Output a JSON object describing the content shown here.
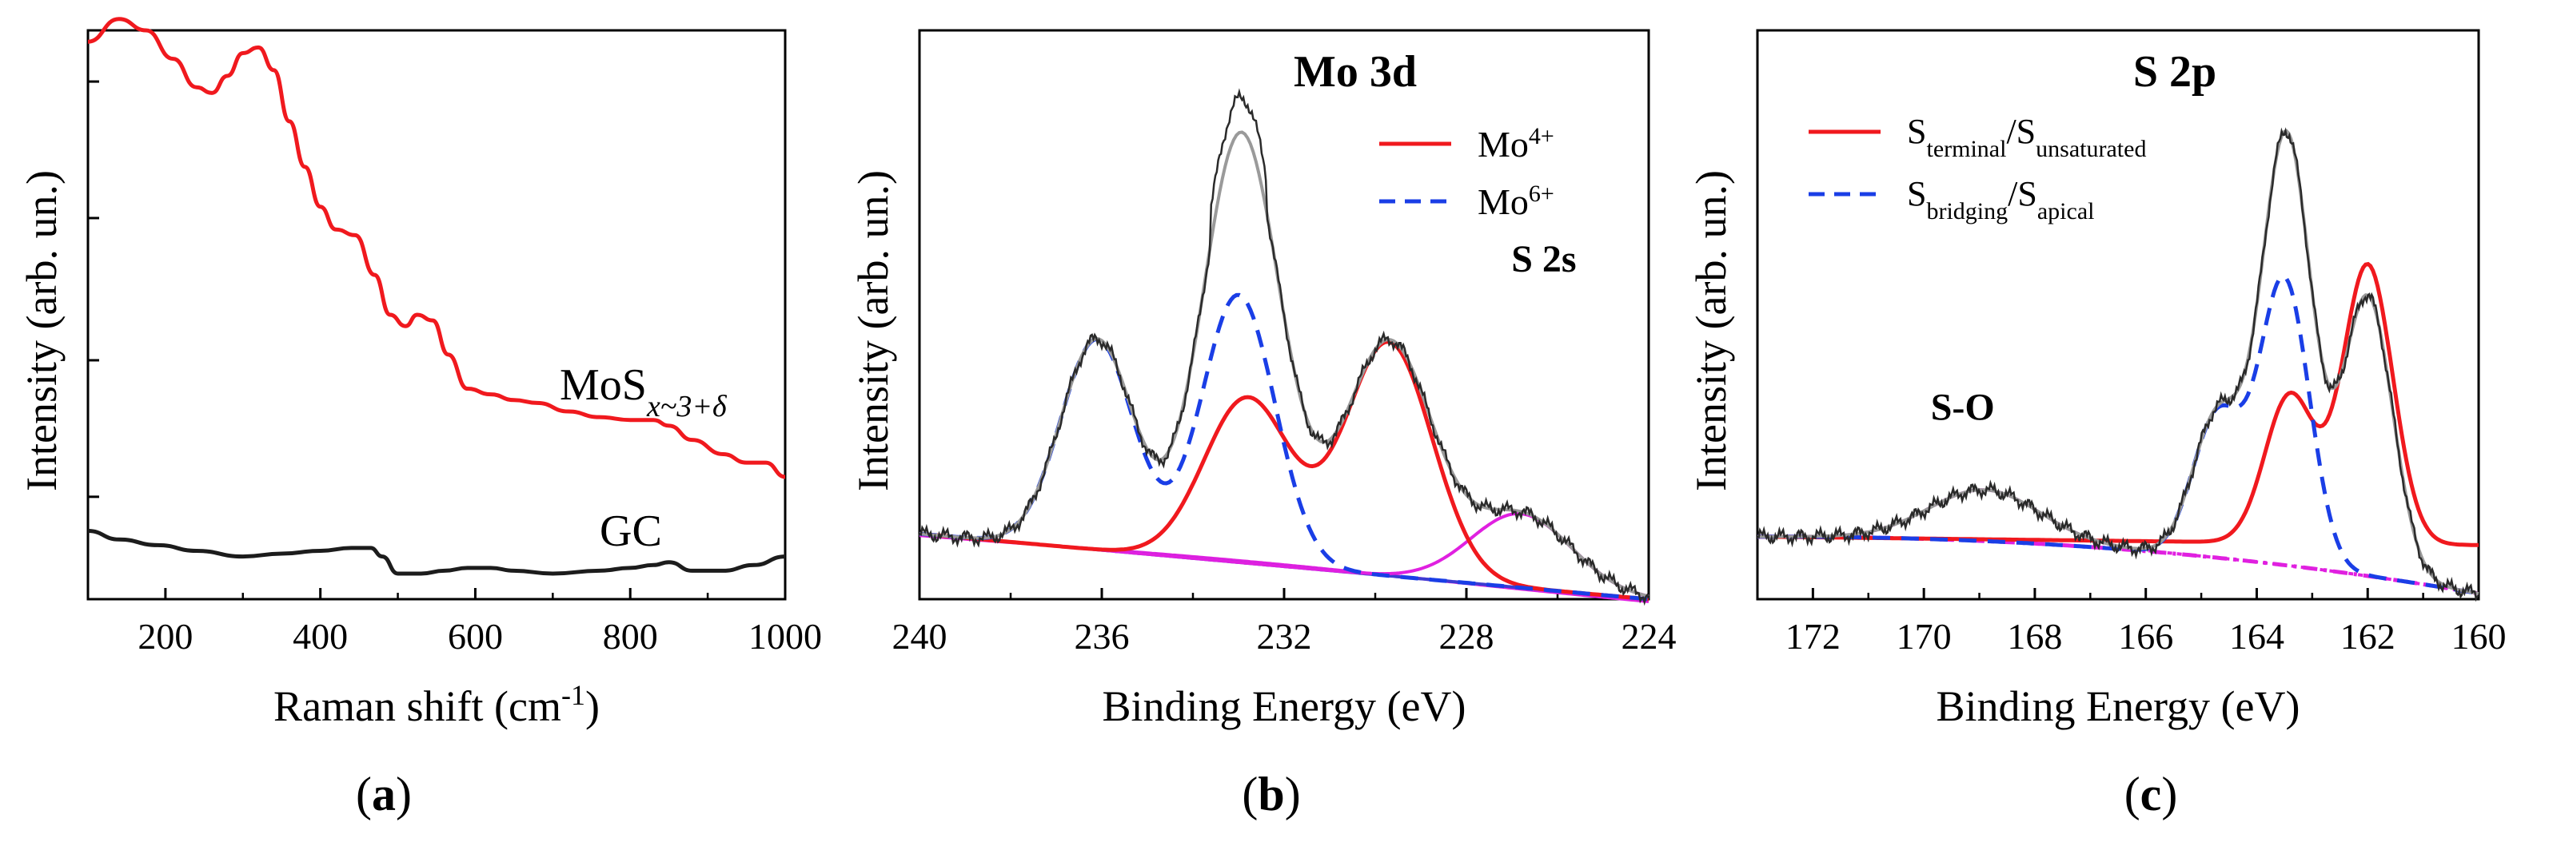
{
  "chart_data": [
    {
      "type": "line",
      "panel": "a",
      "panel_label": "a",
      "xlabel": "Raman shift (cm",
      "xlabel_sup": "-1",
      "xlabel_end": ")",
      "ylabel": "Intensity (arb. un.)",
      "xlim": [
        100,
        1000
      ],
      "ylim": [
        0,
        100
      ],
      "xticks": [
        200,
        400,
        600,
        800,
        1000
      ],
      "yticks": [
        18,
        42,
        67,
        91
      ],
      "series": [
        {
          "name": "MoSx~3+δ",
          "label_main": "MoS",
          "label_sub": "x~3+δ",
          "color": "#f0191e",
          "points": [
            [
              100,
              98
            ],
            [
              140,
              102
            ],
            [
              175,
              100
            ],
            [
              210,
              95
            ],
            [
              240,
              90
            ],
            [
              260,
              89
            ],
            [
              280,
              92
            ],
            [
              300,
              96
            ],
            [
              320,
              97
            ],
            [
              340,
              93
            ],
            [
              360,
              84
            ],
            [
              380,
              76
            ],
            [
              400,
              69
            ],
            [
              420,
              65
            ],
            [
              445,
              64
            ],
            [
              470,
              57
            ],
            [
              490,
              50
            ],
            [
              510,
              48
            ],
            [
              525,
              50
            ],
            [
              545,
              49
            ],
            [
              565,
              43
            ],
            [
              590,
              37
            ],
            [
              620,
              36
            ],
            [
              650,
              35
            ],
            [
              680,
              34.5
            ],
            [
              720,
              33
            ],
            [
              760,
              32
            ],
            [
              800,
              31.5
            ],
            [
              830,
              31.5
            ],
            [
              850,
              30.5
            ],
            [
              880,
              28
            ],
            [
              920,
              25.5
            ],
            [
              950,
              24
            ],
            [
              975,
              24
            ],
            [
              1000,
              21.5
            ]
          ]
        },
        {
          "name": "GC",
          "label_main": "GC",
          "color": "#1c1c1c",
          "points": [
            [
              100,
              12
            ],
            [
              140,
              10.5
            ],
            [
              190,
              9.5
            ],
            [
              240,
              8.5
            ],
            [
              300,
              7.5
            ],
            [
              350,
              8
            ],
            [
              400,
              8.5
            ],
            [
              440,
              9
            ],
            [
              465,
              9
            ],
            [
              480,
              7.5
            ],
            [
              500,
              4.5
            ],
            [
              530,
              4.5
            ],
            [
              560,
              5
            ],
            [
              590,
              5.5
            ],
            [
              620,
              5.5
            ],
            [
              650,
              5
            ],
            [
              700,
              4.5
            ],
            [
              760,
              5
            ],
            [
              800,
              5.5
            ],
            [
              830,
              6
            ],
            [
              850,
              6.5
            ],
            [
              880,
              5
            ],
            [
              920,
              5
            ],
            [
              960,
              6
            ],
            [
              1000,
              7.5
            ]
          ]
        }
      ]
    },
    {
      "type": "line",
      "panel": "b",
      "panel_label": "b",
      "title": "Mo 3d",
      "xlabel": "Binding Energy (eV)",
      "ylabel": "Intensity (arb. un.)",
      "xlim": [
        240,
        224
      ],
      "ylim": [
        0,
        100
      ],
      "xticks": [
        240,
        236,
        232,
        228,
        224
      ],
      "legend": [
        {
          "label_main": "Mo",
          "label_sup": "4+",
          "color": "#f0191e",
          "dash": "solid"
        },
        {
          "label_main": "Mo",
          "label_sup": "6+",
          "color": "#1a3ee6",
          "dash": "dashed"
        }
      ],
      "annotations": [
        {
          "text": "S 2s",
          "x": 226.3,
          "y": 33
        }
      ],
      "peaks": {
        "baseline": {
          "color": "#3c3cd2",
          "start": 11.5,
          "end": 0
        },
        "background": {
          "color": "#e020e0"
        },
        "mo6_1": {
          "center": 236.1,
          "height": 37,
          "width": 0.8,
          "color": "#1a3ee6"
        },
        "mo6_2": {
          "center": 233.0,
          "height": 47,
          "width": 0.8,
          "color": "#1a3ee6"
        },
        "mo4_1": {
          "center": 232.8,
          "height": 29,
          "width": 0.95,
          "color": "#f0191e"
        },
        "mo4_2": {
          "center": 229.7,
          "height": 41,
          "width": 0.95,
          "color": "#f0191e"
        },
        "s2s": {
          "center": 226.8,
          "height": 13,
          "width": 1.1,
          "color": "#e020e0"
        }
      },
      "raw_color": "#2a2a2a"
    },
    {
      "type": "line",
      "panel": "c",
      "panel_label": "c",
      "title": "S 2p",
      "xlabel": "Binding Energy (eV)",
      "ylabel": "Intensity (arb. un.)",
      "xlim": [
        173,
        160
      ],
      "ylim": [
        0,
        100
      ],
      "xticks": [
        172,
        170,
        168,
        166,
        164,
        162,
        160
      ],
      "legend": [
        {
          "label_main": "S",
          "label_sub1": "terminal",
          "label_mid": "/S",
          "label_sub2": "unsaturated",
          "color": "#f0191e",
          "dash": "solid"
        },
        {
          "label_main": "S",
          "label_sub1": "bridging",
          "label_mid": "/S",
          "label_sub2": "apical",
          "color": "#1a3ee6",
          "dash": "dashed"
        }
      ],
      "annotations": [
        {
          "text": "S-O",
          "x": 169.3,
          "y": 28
        }
      ],
      "peaks": {
        "background": {
          "color": "#e020e0",
          "start": 11,
          "end": 1
        },
        "so": {
          "center": 168.9,
          "height": 9,
          "width": 1.0,
          "color": "#e020e0"
        },
        "sb_1": {
          "center": 163.5,
          "height": 50,
          "width": 0.45,
          "color": "#1a3ee6"
        },
        "sb_2": {
          "center": 164.7,
          "height": 25,
          "width": 0.45,
          "color": "#1a3ee6"
        },
        "st_1": {
          "center": 162.0,
          "height": 49,
          "width": 0.45,
          "color": "#f0191e"
        },
        "st_2": {
          "center": 163.4,
          "height": 26,
          "width": 0.45,
          "color": "#f0191e"
        }
      },
      "raw_color": "#2a2a2a"
    }
  ]
}
